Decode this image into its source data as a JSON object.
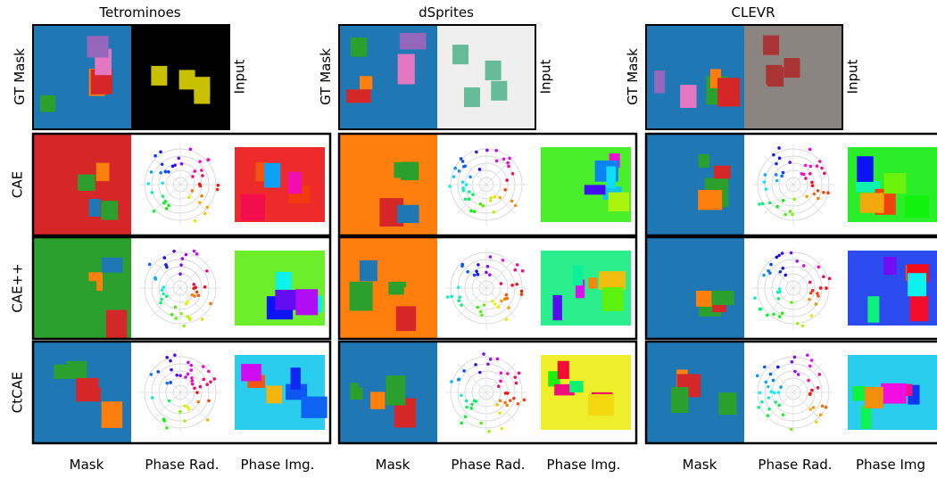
{
  "groups": [
    {
      "title": "Tetrominoes",
      "gt_label": "GT Mask",
      "input_label": "Input",
      "footer": [
        "Mask",
        "Phase Rad.",
        "Phase Img."
      ]
    },
    {
      "title": "dSprites",
      "gt_label": "GT Mask",
      "input_label": "Input",
      "footer": [
        "Mask",
        "Phase Rad.",
        "Phase Img."
      ]
    },
    {
      "title": "CLEVR",
      "gt_label": "GT Mask",
      "input_label": "Input",
      "footer": [
        "Mask",
        "Phase Rad.",
        "Phase Img"
      ]
    }
  ],
  "rows": [
    "CAE",
    "CAE++",
    "CtCAE"
  ]
}
